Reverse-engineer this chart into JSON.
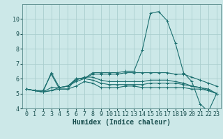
{
  "xlabel": "Humidex (Indice chaleur)",
  "background_color": "#cce8e8",
  "grid_color": "#aacece",
  "line_color": "#1a6e6e",
  "x_values": [
    0,
    1,
    2,
    3,
    4,
    5,
    6,
    7,
    8,
    9,
    10,
    11,
    12,
    13,
    14,
    15,
    16,
    17,
    18,
    19,
    20,
    21,
    22,
    23
  ],
  "series": [
    [
      5.3,
      5.2,
      5.2,
      6.3,
      5.3,
      5.3,
      6.0,
      6.0,
      6.4,
      6.4,
      6.4,
      6.4,
      6.5,
      6.5,
      7.9,
      10.4,
      10.5,
      9.9,
      8.4,
      6.4,
      5.8,
      4.3,
      3.8,
      5.0
    ],
    [
      5.3,
      5.2,
      5.1,
      5.2,
      5.3,
      5.3,
      5.5,
      5.8,
      5.7,
      5.4,
      5.4,
      5.4,
      5.5,
      5.5,
      5.4,
      5.4,
      5.4,
      5.4,
      5.4,
      5.4,
      5.3,
      5.3,
      5.2,
      5.0
    ],
    [
      5.3,
      5.2,
      5.1,
      5.2,
      5.4,
      5.5,
      5.8,
      6.0,
      5.9,
      5.7,
      5.6,
      5.6,
      5.6,
      5.6,
      5.6,
      5.7,
      5.7,
      5.7,
      5.7,
      5.6,
      5.5,
      5.4,
      5.3,
      5.0
    ],
    [
      5.3,
      5.2,
      5.1,
      5.4,
      5.4,
      5.5,
      5.9,
      6.1,
      6.1,
      5.9,
      5.8,
      5.8,
      5.8,
      5.8,
      5.8,
      5.9,
      5.9,
      5.9,
      5.8,
      5.7,
      5.5,
      5.4,
      5.2,
      5.0
    ],
    [
      5.3,
      5.2,
      5.1,
      6.4,
      5.4,
      5.5,
      6.0,
      6.0,
      6.3,
      6.3,
      6.3,
      6.3,
      6.4,
      6.4,
      6.4,
      6.4,
      6.4,
      6.4,
      6.3,
      6.3,
      6.1,
      5.9,
      5.7,
      5.5
    ]
  ],
  "xlim": [
    -0.5,
    23.5
  ],
  "ylim": [
    4,
    11
  ],
  "yticks": [
    4,
    5,
    6,
    7,
    8,
    9,
    10
  ],
  "xticks": [
    0,
    1,
    2,
    3,
    4,
    5,
    6,
    7,
    8,
    9,
    10,
    11,
    12,
    13,
    14,
    15,
    16,
    17,
    18,
    19,
    20,
    21,
    22,
    23
  ],
  "tick_fontsize": 6,
  "xlabel_fontsize": 7
}
